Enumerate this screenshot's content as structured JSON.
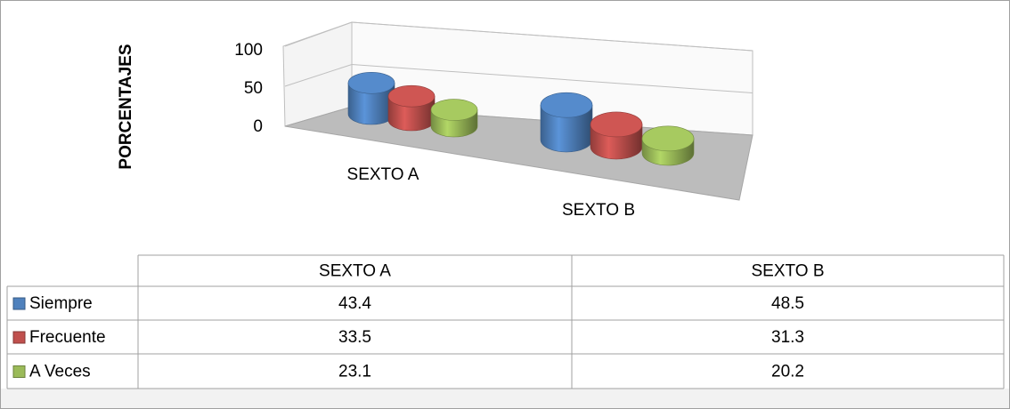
{
  "chart_data": {
    "type": "bar3d",
    "y_axis_label": "PORCENTAJES",
    "categories": [
      "SEXTO A",
      "SEXTO B"
    ],
    "series": [
      {
        "name": "Siempre",
        "color": "#4f81bd",
        "values": [
          43.4,
          48.5
        ]
      },
      {
        "name": "Frecuente",
        "color": "#c0504d",
        "values": [
          33.5,
          31.3
        ]
      },
      {
        "name": "A Veces",
        "color": "#9bbb59",
        "values": [
          23.1,
          20.2
        ]
      }
    ],
    "ylim": [
      0,
      100
    ],
    "yticks": [
      0,
      50,
      100
    ],
    "grid": true,
    "legend": "table"
  }
}
